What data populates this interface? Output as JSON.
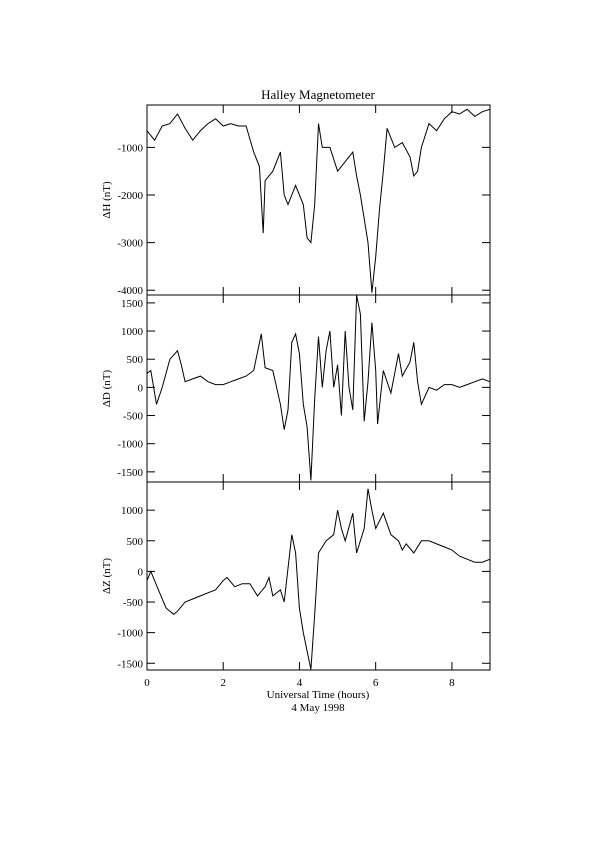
{
  "chart_data": [
    {
      "type": "line",
      "title": "Halley Magnetometer",
      "ylabel": "ΔH (nT)",
      "color": "#000000",
      "xlim": [
        0,
        9
      ],
      "ylim": [
        -4100,
        -110
      ],
      "yticks": [
        -4000,
        -3000,
        -2000,
        -1000
      ],
      "x": [
        0,
        0.2,
        0.4,
        0.6,
        0.8,
        1.0,
        1.2,
        1.4,
        1.6,
        1.8,
        2.0,
        2.2,
        2.4,
        2.6,
        2.8,
        2.95,
        3.05,
        3.1,
        3.3,
        3.5,
        3.6,
        3.7,
        3.9,
        4.1,
        4.2,
        4.3,
        4.4,
        4.5,
        4.6,
        4.8,
        5.0,
        5.2,
        5.4,
        5.5,
        5.6,
        5.8,
        5.9,
        6.0,
        6.1,
        6.2,
        6.3,
        6.5,
        6.7,
        6.9,
        7.0,
        7.1,
        7.2,
        7.4,
        7.6,
        7.8,
        8.0,
        8.2,
        8.4,
        8.6,
        8.8,
        9.0
      ],
      "values": [
        -650,
        -850,
        -550,
        -500,
        -300,
        -600,
        -850,
        -650,
        -500,
        -400,
        -550,
        -500,
        -550,
        -550,
        -1100,
        -1400,
        -2800,
        -1700,
        -1500,
        -1100,
        -2000,
        -2200,
        -1800,
        -2200,
        -2900,
        -3000,
        -2200,
        -500,
        -1000,
        -1000,
        -1500,
        -1300,
        -1100,
        -1600,
        -2000,
        -3000,
        -4050,
        -3300,
        -2300,
        -1500,
        -600,
        -1000,
        -900,
        -1200,
        -1600,
        -1500,
        -1000,
        -500,
        -650,
        -400,
        -250,
        -300,
        -200,
        -350,
        -250,
        -200
      ]
    },
    {
      "type": "line",
      "ylabel": "ΔD (nT)",
      "color": "#000000",
      "xlim": [
        0,
        9
      ],
      "ylim": [
        -1680,
        1640
      ],
      "yticks": [
        -1500,
        -1000,
        -500,
        0,
        500,
        1000,
        1500
      ],
      "x": [
        0,
        0.1,
        0.25,
        0.4,
        0.6,
        0.8,
        0.9,
        1.0,
        1.2,
        1.4,
        1.6,
        1.8,
        2.0,
        2.2,
        2.4,
        2.6,
        2.8,
        3.0,
        3.1,
        3.3,
        3.5,
        3.6,
        3.7,
        3.8,
        3.9,
        4.0,
        4.1,
        4.2,
        4.3,
        4.4,
        4.5,
        4.6,
        4.7,
        4.8,
        4.9,
        5.0,
        5.1,
        5.2,
        5.3,
        5.4,
        5.5,
        5.6,
        5.7,
        5.8,
        5.9,
        6.0,
        6.05,
        6.2,
        6.4,
        6.6,
        6.7,
        6.9,
        7.0,
        7.1,
        7.2,
        7.4,
        7.6,
        7.8,
        8.0,
        8.2,
        8.4,
        8.6,
        8.8,
        9.0
      ],
      "values": [
        250,
        300,
        -300,
        0,
        500,
        650,
        400,
        100,
        150,
        200,
        100,
        50,
        50,
        100,
        150,
        200,
        300,
        950,
        350,
        300,
        -300,
        -750,
        -400,
        800,
        950,
        600,
        -300,
        -700,
        -1650,
        -200,
        900,
        0,
        650,
        1000,
        0,
        400,
        -500,
        1000,
        0,
        -400,
        1640,
        1300,
        -600,
        100,
        1150,
        300,
        -650,
        300,
        -100,
        600,
        200,
        450,
        800,
        100,
        -300,
        0,
        -50,
        50,
        50,
        0,
        50,
        100,
        150,
        100
      ]
    },
    {
      "type": "line",
      "ylabel": "ΔZ (nT)",
      "xlabel": "Universal Time (hours)",
      "date": "4 May 1998",
      "color": "#000000",
      "xlim": [
        0,
        9
      ],
      "ylim": [
        -1610,
        1460
      ],
      "yticks": [
        -1500,
        -1000,
        -500,
        0,
        500,
        1000
      ],
      "xticks": [
        0,
        2,
        4,
        6,
        8
      ],
      "x": [
        0,
        0.1,
        0.3,
        0.5,
        0.7,
        0.8,
        1.0,
        1.2,
        1.4,
        1.6,
        1.8,
        2.0,
        2.1,
        2.3,
        2.5,
        2.7,
        2.9,
        3.1,
        3.2,
        3.3,
        3.5,
        3.6,
        3.8,
        3.9,
        4.0,
        4.1,
        4.2,
        4.3,
        4.4,
        4.5,
        4.7,
        4.9,
        5.0,
        5.1,
        5.2,
        5.4,
        5.5,
        5.7,
        5.8,
        5.9,
        6.0,
        6.2,
        6.4,
        6.6,
        6.7,
        6.8,
        7.0,
        7.2,
        7.4,
        7.6,
        7.8,
        8.0,
        8.2,
        8.4,
        8.6,
        8.8,
        9.0
      ],
      "values": [
        -150,
        0,
        -300,
        -600,
        -700,
        -650,
        -500,
        -450,
        -400,
        -350,
        -300,
        -150,
        -100,
        -250,
        -200,
        -200,
        -400,
        -250,
        -100,
        -400,
        -300,
        -500,
        600,
        300,
        -600,
        -1000,
        -1300,
        -1600,
        -700,
        300,
        500,
        600,
        1000,
        700,
        500,
        950,
        300,
        700,
        1350,
        1000,
        700,
        950,
        600,
        500,
        350,
        450,
        300,
        500,
        500,
        450,
        400,
        350,
        250,
        200,
        150,
        150,
        200
      ]
    }
  ]
}
